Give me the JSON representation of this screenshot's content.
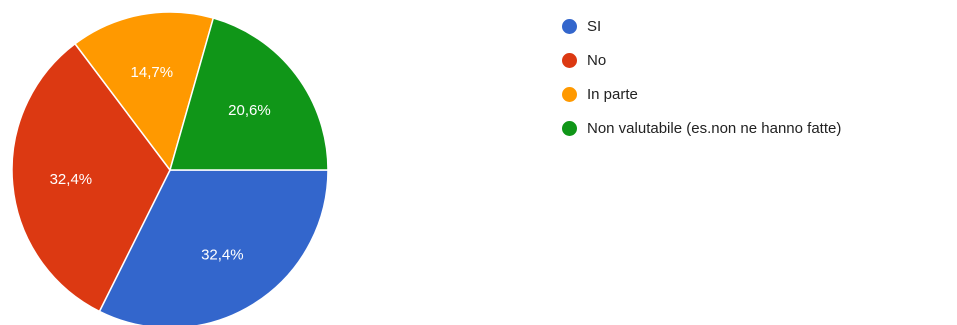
{
  "chart_data": {
    "type": "pie",
    "title": "",
    "slices": [
      {
        "label": "SI",
        "value": 32.4,
        "value_label": "32,4%",
        "color": "#3366cc"
      },
      {
        "label": "No",
        "value": 32.4,
        "value_label": "32,4%",
        "color": "#dc3912"
      },
      {
        "label": "In parte",
        "value": 14.7,
        "value_label": "14,7%",
        "color": "#ff9900"
      },
      {
        "label": "Non valutabile (es.non ne hanno fatte)",
        "value": 20.6,
        "value_label": "20,6%",
        "color": "#109618"
      }
    ],
    "legend_position": "right"
  }
}
